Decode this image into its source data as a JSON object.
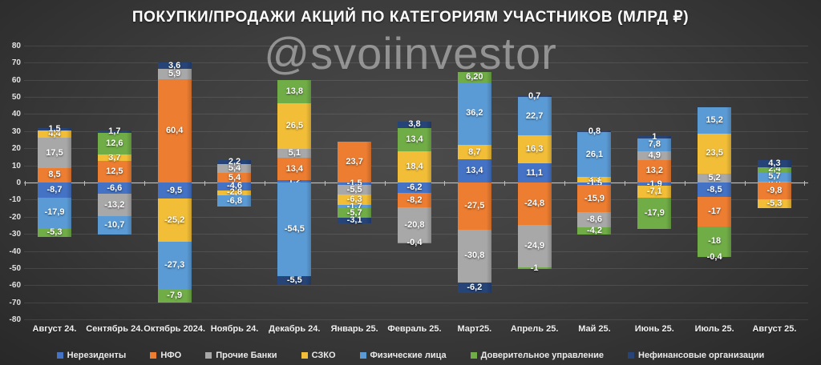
{
  "chart_data": {
    "type": "bar",
    "stacked": true,
    "title": "ПОКУПКИ/ПРОДАЖИ АКЦИЙ ПО КАТЕГОРИЯМ УЧАСТНИКОВ (МЛРД ₽)",
    "watermark": "@svoiinvestor",
    "ylim": [
      -80,
      80
    ],
    "ytick_step": 10,
    "yticks": [
      80,
      70,
      60,
      50,
      40,
      30,
      20,
      10,
      0,
      -10,
      -20,
      -30,
      -40,
      -50,
      -60,
      -70,
      -80
    ],
    "grid": true,
    "legend_position": "bottom",
    "series": [
      {
        "name": "Нерезиденты",
        "color": "#4472C4"
      },
      {
        "name": "НФО",
        "color": "#ED7D31"
      },
      {
        "name": "Прочие Банки",
        "color": "#A8A8A8"
      },
      {
        "name": "СЗКО",
        "color": "#F2BE37"
      },
      {
        "name": "Физические лица",
        "color": "#5B9BD5"
      },
      {
        "name": "Доверительное управление",
        "color": "#70AD47"
      },
      {
        "name": "Нефинансовые организации",
        "color": "#264478"
      }
    ],
    "bars": [
      {
        "category": "Август 24.",
        "pos": [
          {
            "series": "НФО",
            "label": "8,5",
            "value": 8.5
          },
          {
            "series": "Прочие Банки",
            "label": "17,5",
            "value": 17.5
          },
          {
            "series": "СЗКО",
            "label": "4,4",
            "value": 4.4
          },
          {
            "series": "Нефинансовые организации",
            "label": "1,5",
            "value": 1.5
          }
        ],
        "neg": [
          {
            "series": "Нерезиденты",
            "label": "-8,7",
            "value": -8.7
          },
          {
            "series": "Физические лица",
            "label": "-17,9",
            "value": -17.9
          },
          {
            "series": "Доверительное управление",
            "label": "-5,3",
            "value": -5.3
          }
        ]
      },
      {
        "category": "Сентябрь 24.",
        "pos": [
          {
            "series": "НФО",
            "label": "12,5",
            "value": 12.5
          },
          {
            "series": "СЗКО",
            "label": "3,7",
            "value": 3.7
          },
          {
            "series": "Доверительное управление",
            "label": "12,6",
            "value": 12.6
          },
          {
            "series": "Нефинансовые организации",
            "label": "1,7",
            "value": 1.7
          }
        ],
        "neg": [
          {
            "series": "Нерезиденты",
            "label": "-6,6",
            "value": -6.6
          },
          {
            "series": "Прочие Банки",
            "label": "-13,2",
            "value": -13.2
          },
          {
            "series": "Физические лица",
            "label": "-10,7",
            "value": -10.7
          }
        ]
      },
      {
        "category": "Октябрь 2024.",
        "pos": [
          {
            "series": "НФО",
            "label": "60,4",
            "value": 60.4
          },
          {
            "series": "Прочие Банки",
            "label": "5,9",
            "value": 5.9
          },
          {
            "series": "Нефинансовые организации",
            "label": "3,6",
            "value": 3.6
          }
        ],
        "neg": [
          {
            "series": "Нерезиденты",
            "label": "-9,5",
            "value": -9.5
          },
          {
            "series": "СЗКО",
            "label": "-25,2",
            "value": -25.2
          },
          {
            "series": "Физические лица",
            "label": "-27,3",
            "value": -27.3
          },
          {
            "series": "Доверительное управление",
            "label": "-7,9",
            "value": -7.9
          }
        ]
      },
      {
        "category": "Ноябрь 24.",
        "pos": [
          {
            "series": "НФО",
            "label": "5,4",
            "value": 5.4
          },
          {
            "series": "Прочие Банки",
            "label": "5,4",
            "value": 5.4
          },
          {
            "series": "Нефинансовые организации",
            "label": "2,2",
            "value": 2.2
          }
        ],
        "neg": [
          {
            "series": "Нерезиденты",
            "label": "-4,6",
            "value": -4.6
          },
          {
            "series": "СЗКО",
            "label": "-2,8",
            "value": -2.8
          },
          {
            "series": "Физические лица",
            "label": "-6,8",
            "value": -6.8
          }
        ]
      },
      {
        "category": "Декабрь 24.",
        "pos": [
          {
            "series": "Нерезиденты",
            "label": "1,2",
            "value": 1.2
          },
          {
            "series": "НФО",
            "label": "13,4",
            "value": 13.4
          },
          {
            "series": "Прочие Банки",
            "label": "5,1",
            "value": 5.1
          },
          {
            "series": "СЗКО",
            "label": "26,5",
            "value": 26.5
          },
          {
            "series": "Доверительное управление",
            "label": "13,8",
            "value": 13.8
          }
        ],
        "neg": [
          {
            "series": "Физические лица",
            "label": "-54,5",
            "value": -54.5
          },
          {
            "series": "Нефинансовые организации",
            "label": "-5,5",
            "value": -5.5
          }
        ]
      },
      {
        "category": "Январь 25.",
        "pos": [
          {
            "series": "НФО",
            "label": "23,7",
            "value": 23.7
          }
        ],
        "neg": [
          {
            "series": "Нерезиденты",
            "label": "-1,5",
            "value": -1.5
          },
          {
            "series": "Прочие Банки",
            "label": "-5,5",
            "value": -5.5
          },
          {
            "series": "СЗКО",
            "label": "-6,3",
            "value": -6.3
          },
          {
            "series": "Физические лица",
            "label": "-1,7",
            "value": -1.7
          },
          {
            "series": "Доверительное управление",
            "label": "-5,7",
            "value": -5.7
          },
          {
            "series": "Нефинансовые организации",
            "label": "-3,1",
            "value": -3.1
          }
        ]
      },
      {
        "category": "Февраль 25.",
        "pos": [
          {
            "series": "СЗКО",
            "label": "18,4",
            "value": 18.4
          },
          {
            "series": "Доверительное управление",
            "label": "13,4",
            "value": 13.4
          },
          {
            "series": "Нефинансовые организации",
            "label": "3,8",
            "value": 3.8
          }
        ],
        "neg": [
          {
            "series": "Нерезиденты",
            "label": "-6,2",
            "value": -6.2
          },
          {
            "series": "НФО",
            "label": "-8,2",
            "value": -8.2
          },
          {
            "series": "Прочие Банки",
            "label": "-20,8",
            "value": -20.8
          },
          {
            "series": "Физические лица",
            "label": "-0,4",
            "value": -0.4
          }
        ]
      },
      {
        "category": "Март25.",
        "pos": [
          {
            "series": "Нерезиденты",
            "label": "13,4",
            "value": 13.4
          },
          {
            "series": "СЗКО",
            "label": "8,7",
            "value": 8.7
          },
          {
            "series": "Физические лица",
            "label": "36,2",
            "value": 36.2
          },
          {
            "series": "Доверительное управление",
            "label": "6,20",
            "value": 6.2
          }
        ],
        "neg": [
          {
            "series": "НФО",
            "label": "-27,5",
            "value": -27.5
          },
          {
            "series": "Прочие Банки",
            "label": "-30,8",
            "value": -30.8
          },
          {
            "series": "Нефинансовые организации",
            "label": "-6,2",
            "value": -6.2
          }
        ]
      },
      {
        "category": "Апрель 25.",
        "pos": [
          {
            "series": "Нерезиденты",
            "label": "11,1",
            "value": 11.1
          },
          {
            "series": "СЗКО",
            "label": "16,3",
            "value": 16.3
          },
          {
            "series": "Физические лица",
            "label": "22,7",
            "value": 22.7
          },
          {
            "series": "Нефинансовые организации",
            "label": "0,7",
            "value": 0.7
          }
        ],
        "neg": [
          {
            "series": "НФО",
            "label": "-24,8",
            "value": -24.8
          },
          {
            "series": "Прочие Банки",
            "label": "-24,9",
            "value": -24.9
          },
          {
            "series": "Доверительное управление",
            "label": "-1",
            "value": -1.0
          }
        ]
      },
      {
        "category": "Май 25.",
        "pos": [
          {
            "series": "СЗКО",
            "label": "3,3",
            "value": 3.3
          },
          {
            "series": "Физические лица",
            "label": "26,1",
            "value": 26.1
          },
          {
            "series": "Нефинансовые организации",
            "label": "0,8",
            "value": 0.8
          }
        ],
        "neg": [
          {
            "series": "Нерезиденты",
            "label": "-1,5",
            "value": -1.5
          },
          {
            "series": "НФО",
            "label": "-15,9",
            "value": -15.9
          },
          {
            "series": "Прочие Банки",
            "label": "-8,6",
            "value": -8.6
          },
          {
            "series": "Доверительное управление",
            "label": "-4,2",
            "value": -4.2
          }
        ]
      },
      {
        "category": "Июнь 25.",
        "pos": [
          {
            "series": "НФО",
            "label": "13,2",
            "value": 13.2
          },
          {
            "series": "Прочие Банки",
            "label": "4,9",
            "value": 4.9
          },
          {
            "series": "Физические лица",
            "label": "7,8",
            "value": 7.8
          },
          {
            "series": "Нефинансовые организации",
            "label": "1",
            "value": 1.0
          }
        ],
        "neg": [
          {
            "series": "Нерезиденты",
            "label": "-1,9",
            "value": -1.9
          },
          {
            "series": "СЗКО",
            "label": "-7,1",
            "value": -7.1
          },
          {
            "series": "Доверительное управление",
            "label": "-17,9",
            "value": -17.9
          }
        ]
      },
      {
        "category": "Июль 25.",
        "pos": [
          {
            "series": "Прочие Банки",
            "label": "5,2",
            "value": 5.2
          },
          {
            "series": "СЗКО",
            "label": "23,5",
            "value": 23.5
          },
          {
            "series": "Физические лица",
            "label": "15,2",
            "value": 15.2
          }
        ],
        "neg": [
          {
            "series": "Нерезиденты",
            "label": "-8,5",
            "value": -8.5
          },
          {
            "series": "НФО",
            "label": "-17",
            "value": -17.0
          },
          {
            "series": "Доверительное управление",
            "label": "-18",
            "value": -18.0
          },
          {
            "series": "Нефинансовые организации",
            "label": "-0,4",
            "value": -0.4
          }
        ]
      },
      {
        "category": "Август 25.",
        "pos": [
          {
            "series": "Прочие Банки",
            "label": "0,6",
            "value": 0.6
          },
          {
            "series": "Физические лица",
            "label": "5,7",
            "value": 5.7
          },
          {
            "series": "Доверительное управление",
            "label": "2,4",
            "value": 2.4
          },
          {
            "series": "Нефинансовые организации",
            "label": "4,3",
            "value": 4.3
          }
        ],
        "neg": [
          {
            "series": "НФО",
            "label": "-9,8",
            "value": -9.8
          },
          {
            "series": "СЗКО",
            "label": "-5,3",
            "value": -5.3
          }
        ]
      }
    ]
  }
}
